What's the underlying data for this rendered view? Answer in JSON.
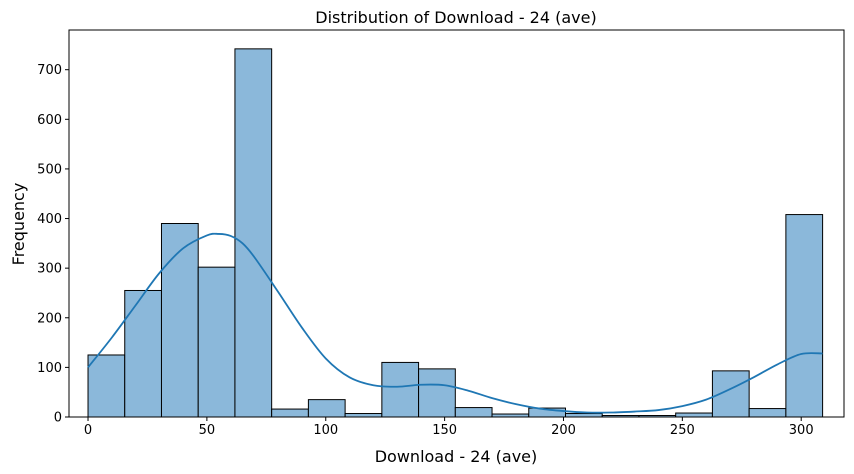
{
  "chart_data": {
    "type": "bar",
    "title": "Distribution of Download - 24 (ave)",
    "xlabel": "Download - 24 (ave)",
    "ylabel": "Frequency",
    "xlim": [
      -8,
      318
    ],
    "ylim": [
      0,
      780
    ],
    "xticks": [
      0,
      50,
      100,
      150,
      200,
      250,
      300
    ],
    "yticks": [
      0,
      100,
      200,
      300,
      400,
      500,
      600,
      700
    ],
    "bins": [
      {
        "x0": 0.0,
        "x1": 15.45,
        "count": 125
      },
      {
        "x0": 15.45,
        "x1": 30.9,
        "count": 255
      },
      {
        "x0": 30.9,
        "x1": 46.35,
        "count": 390
      },
      {
        "x0": 46.35,
        "x1": 61.8,
        "count": 302
      },
      {
        "x0": 61.8,
        "x1": 77.25,
        "count": 742
      },
      {
        "x0": 77.25,
        "x1": 92.7,
        "count": 16
      },
      {
        "x0": 92.7,
        "x1": 108.15,
        "count": 35
      },
      {
        "x0": 108.15,
        "x1": 123.6,
        "count": 7
      },
      {
        "x0": 123.6,
        "x1": 139.05,
        "count": 110
      },
      {
        "x0": 139.05,
        "x1": 154.5,
        "count": 97
      },
      {
        "x0": 154.5,
        "x1": 169.95,
        "count": 19
      },
      {
        "x0": 169.95,
        "x1": 185.4,
        "count": 6
      },
      {
        "x0": 185.4,
        "x1": 200.85,
        "count": 18
      },
      {
        "x0": 200.85,
        "x1": 216.3,
        "count": 7
      },
      {
        "x0": 216.3,
        "x1": 231.75,
        "count": 3
      },
      {
        "x0": 231.75,
        "x1": 247.2,
        "count": 3
      },
      {
        "x0": 247.2,
        "x1": 262.65,
        "count": 8
      },
      {
        "x0": 262.65,
        "x1": 278.1,
        "count": 93
      },
      {
        "x0": 278.1,
        "x1": 293.55,
        "count": 17
      },
      {
        "x0": 293.55,
        "x1": 309.0,
        "count": 408
      }
    ],
    "kde": {
      "x": [
        0,
        10,
        20,
        30,
        40,
        50,
        55,
        60,
        65,
        70,
        80,
        90,
        100,
        110,
        120,
        130,
        140,
        150,
        160,
        170,
        180,
        190,
        200,
        210,
        220,
        230,
        240,
        250,
        260,
        270,
        280,
        290,
        300,
        309
      ],
      "y": [
        100,
        160,
        225,
        290,
        340,
        366,
        369,
        365,
        350,
        322,
        252,
        180,
        118,
        80,
        64,
        61,
        65,
        64,
        53,
        38,
        26,
        17,
        12,
        9,
        9,
        11,
        14,
        22,
        35,
        56,
        80,
        106,
        127,
        128
      ]
    },
    "bar_color": "#8bb8da",
    "bar_edge_color": "#000000",
    "kde_color": "#1f77b4",
    "grid": false,
    "legend": "none"
  }
}
